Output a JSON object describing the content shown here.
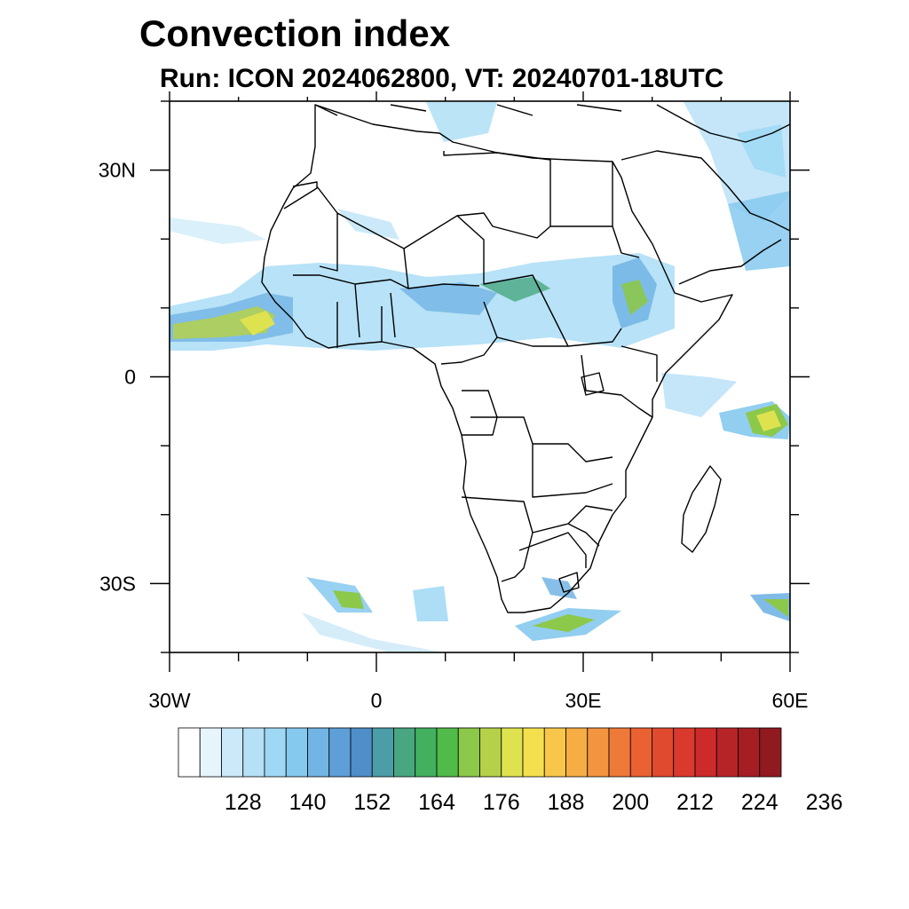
{
  "title": "Convection index",
  "subtitle": "Run: ICON 2024062800,  VT: 20240701-18UTC",
  "map": {
    "lon_range": [
      -30,
      60
    ],
    "lat_range": [
      -40,
      40
    ],
    "lon_ticks": [
      {
        "value": -30,
        "label": "30W"
      },
      {
        "value": 0,
        "label": "0"
      },
      {
        "value": 30,
        "label": "30E"
      },
      {
        "value": 60,
        "label": "60E"
      }
    ],
    "lat_ticks": [
      {
        "value": 30,
        "label": "30N"
      },
      {
        "value": 0,
        "label": "0"
      },
      {
        "value": -30,
        "label": "30S"
      }
    ]
  },
  "colorbar": {
    "colors": [
      "#ffffff",
      "#e6f4fc",
      "#cbe9f8",
      "#b5e0f6",
      "#9fd8f4",
      "#86c9ee",
      "#72b4e4",
      "#5e9fd8",
      "#4f8ec8",
      "#4b9ea8",
      "#48a780",
      "#43b060",
      "#50bb48",
      "#8cc84a",
      "#b5d14a",
      "#dee24f",
      "#f4e04f",
      "#f8c74a",
      "#f6ad44",
      "#f39440",
      "#ee7a3a",
      "#ea6233",
      "#e04a2f",
      "#d93a2d",
      "#cc2b2a",
      "#b72428",
      "#a41e24",
      "#901a20"
    ],
    "labels": [
      "128",
      "140",
      "152",
      "164",
      "176",
      "188",
      "200",
      "212",
      "224",
      "236"
    ]
  }
}
